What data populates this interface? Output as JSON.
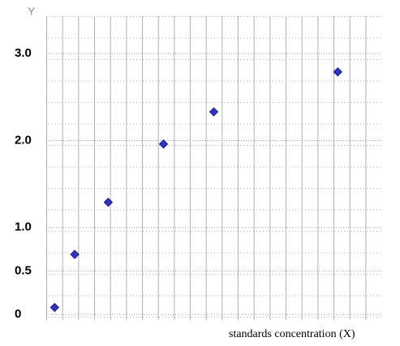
{
  "chart_data": {
    "type": "scatter",
    "y_label": "Y",
    "x_label": "standards concentration (X)",
    "color": "#3333bb",
    "x": [
      0.5,
      1.7,
      3.7,
      7,
      10,
      17.4
    ],
    "values": [
      0.08,
      0.69,
      1.29,
      1.96,
      2.33,
      2.79
    ],
    "xlim": [
      0,
      20
    ],
    "ylim": [
      0,
      3.3
    ],
    "yticks": [
      0,
      0.5,
      {
        "value": 1,
        "label": "1.0"
      },
      {
        "value": 2,
        "label": "2.0"
      },
      {
        "value": 3,
        "label": "3.0"
      }
    ],
    "grid": true
  }
}
